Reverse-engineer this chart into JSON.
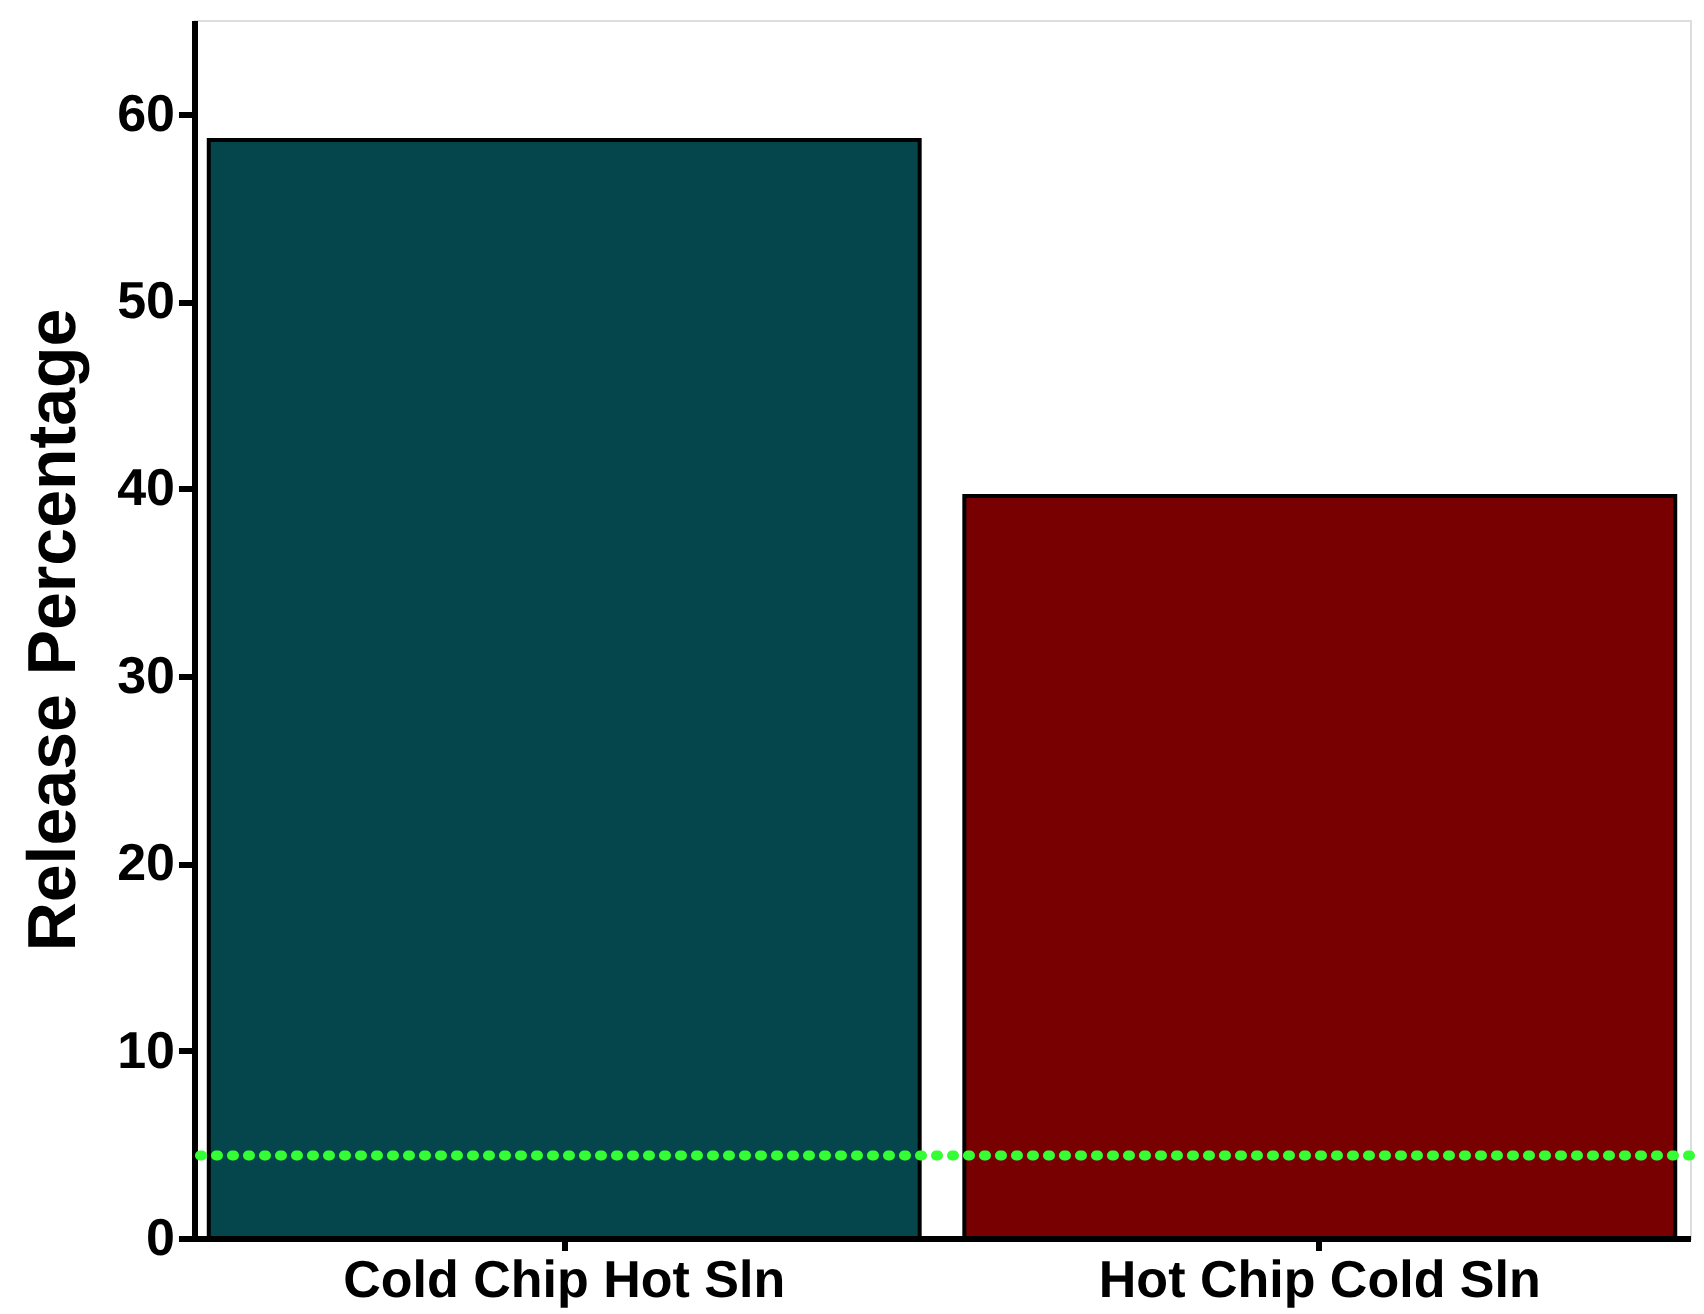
{
  "chart_data": {
    "type": "bar",
    "ylabel": "Release Percentage",
    "categories": [
      "Cold Chip Hot Sln",
      "Hot Chip Cold Sln"
    ],
    "values": [
      58.6,
      39.6
    ],
    "colors": [
      "#05464d",
      "#780000"
    ],
    "ylim": [
      0,
      65
    ],
    "yticks": [
      0,
      10,
      20,
      30,
      40,
      50,
      60
    ],
    "grid": false,
    "ref_lines": [
      {
        "axis": "y",
        "value": 4.4,
        "color": "#33ff33",
        "line_style": "dotted"
      }
    ]
  }
}
